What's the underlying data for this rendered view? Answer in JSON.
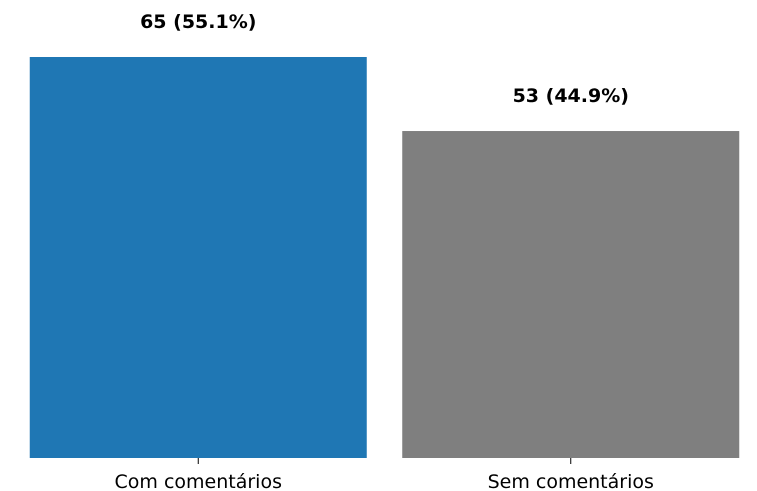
{
  "chart_data": {
    "type": "bar",
    "categories": [
      "Com comentários",
      "Sem comentários"
    ],
    "values": [
      65,
      53
    ],
    "data_labels": [
      "65 (55.1%)",
      "53 (44.9%)"
    ],
    "colors": [
      "#1f77b4",
      "#7f7f7f"
    ],
    "title": "",
    "xlabel": "",
    "ylabel": "",
    "ylim": [
      0,
      65
    ],
    "grid": false,
    "legend": "none"
  }
}
